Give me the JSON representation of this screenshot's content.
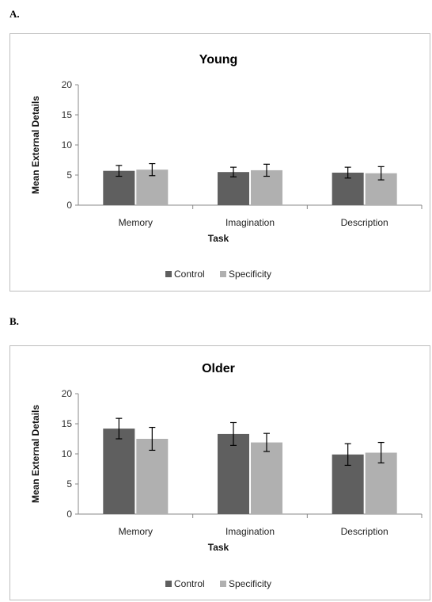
{
  "panels": [
    {
      "letter": "A."
    },
    {
      "letter": "B."
    }
  ],
  "colors": {
    "control": "#5f5f5f",
    "specificity": "#b0b0b0"
  },
  "chart_data": [
    {
      "type": "bar",
      "title": "Young",
      "xlabel": "Task",
      "ylabel": "Mean External Details",
      "ylim": [
        0,
        20
      ],
      "yticks": [
        0,
        5,
        10,
        15,
        20
      ],
      "categories": [
        "Memory",
        "Imagination",
        "Description"
      ],
      "series": [
        {
          "name": "Control",
          "values": [
            5.7,
            5.5,
            5.4
          ],
          "errors": [
            0.9,
            0.8,
            0.9
          ]
        },
        {
          "name": "Specificity",
          "values": [
            5.9,
            5.8,
            5.3
          ],
          "errors": [
            1.0,
            1.0,
            1.1
          ]
        }
      ],
      "legend_position": "bottom"
    },
    {
      "type": "bar",
      "title": "Older",
      "xlabel": "Task",
      "ylabel": "Mean External Details",
      "ylim": [
        0,
        20
      ],
      "yticks": [
        0,
        5,
        10,
        15,
        20
      ],
      "categories": [
        "Memory",
        "Imagination",
        "Description"
      ],
      "series": [
        {
          "name": "Control",
          "values": [
            14.2,
            13.3,
            9.9
          ],
          "errors": [
            1.7,
            1.9,
            1.8
          ]
        },
        {
          "name": "Specificity",
          "values": [
            12.5,
            11.9,
            10.2
          ],
          "errors": [
            1.9,
            1.5,
            1.7
          ]
        }
      ],
      "legend_position": "bottom"
    }
  ]
}
